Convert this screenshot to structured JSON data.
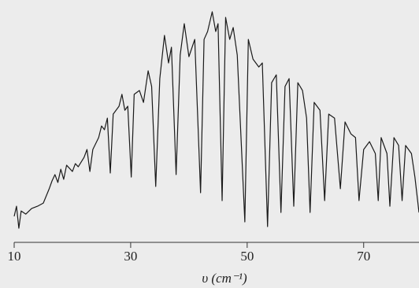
{
  "chart_data": {
    "type": "line",
    "x_label": "υ (cm⁻¹)",
    "xlim": [
      10,
      79.5
    ],
    "xticks": [
      10,
      30,
      50,
      70
    ],
    "ylim": [
      0,
      100
    ],
    "color": "#1a1a1a",
    "x": [
      10,
      10.4,
      10.8,
      11.2,
      12,
      13,
      14,
      15,
      16,
      16.5,
      17,
      17.5,
      18,
      18.5,
      19,
      20,
      20.5,
      21,
      22,
      22.5,
      23,
      23.5,
      24.5,
      25,
      25.5,
      26,
      26.5,
      27,
      28,
      28.5,
      29,
      29.5,
      30.1,
      30.6,
      31.5,
      32.2,
      33,
      33.6,
      34.3,
      35,
      35.8,
      36.5,
      37,
      37.8,
      38.5,
      39.2,
      40,
      41,
      42,
      42.6,
      43.2,
      44,
      44.6,
      45,
      45.7,
      46.3,
      47,
      47.6,
      48.3,
      49.6,
      50.2,
      51,
      52,
      52.6,
      53.5,
      54.2,
      55,
      55.8,
      56.5,
      57.2,
      58,
      58.7,
      59.5,
      60.2,
      60.8,
      61.5,
      62.5,
      63.3,
      64,
      65,
      66,
      66.8,
      67.8,
      68.6,
      69.2,
      70,
      71,
      72,
      72.5,
      73,
      74,
      74.5,
      75.2,
      76,
      76.6,
      77.2,
      78.2,
      78.8,
      79.5
    ],
    "values": [
      8.8,
      13.3,
      3.5,
      11.2,
      9.8,
      12.3,
      13.3,
      14.7,
      21,
      24.6,
      27.4,
      23.9,
      29.8,
      25.3,
      31.6,
      28.8,
      32.3,
      30.9,
      35.1,
      38.6,
      28.8,
      38.6,
      43.9,
      49.1,
      47.4,
      52.6,
      28.1,
      54.4,
      57.9,
      63.2,
      56.1,
      57.9,
      26.3,
      63.2,
      64.9,
      59.6,
      73.7,
      66.7,
      22.1,
      70.2,
      89.5,
      77.2,
      84.2,
      27.4,
      80.7,
      94.7,
      80,
      87.7,
      19.3,
      87.7,
      91.2,
      100,
      91.2,
      94.7,
      15.8,
      97.5,
      87.7,
      93,
      80.7,
      6.3,
      87.7,
      78.9,
      75.4,
      77.2,
      4.2,
      68.4,
      71.9,
      10.5,
      66.7,
      70.2,
      13.3,
      68.4,
      64.9,
      52.6,
      10.5,
      59.6,
      56.1,
      15.8,
      54.4,
      52.6,
      21.1,
      50.9,
      45.6,
      43.9,
      15.8,
      38.6,
      42.1,
      36.8,
      15.8,
      43.9,
      36.8,
      13.3,
      43.9,
      40.4,
      15.8,
      40.4,
      36.8,
      26.3,
      10.5
    ]
  }
}
